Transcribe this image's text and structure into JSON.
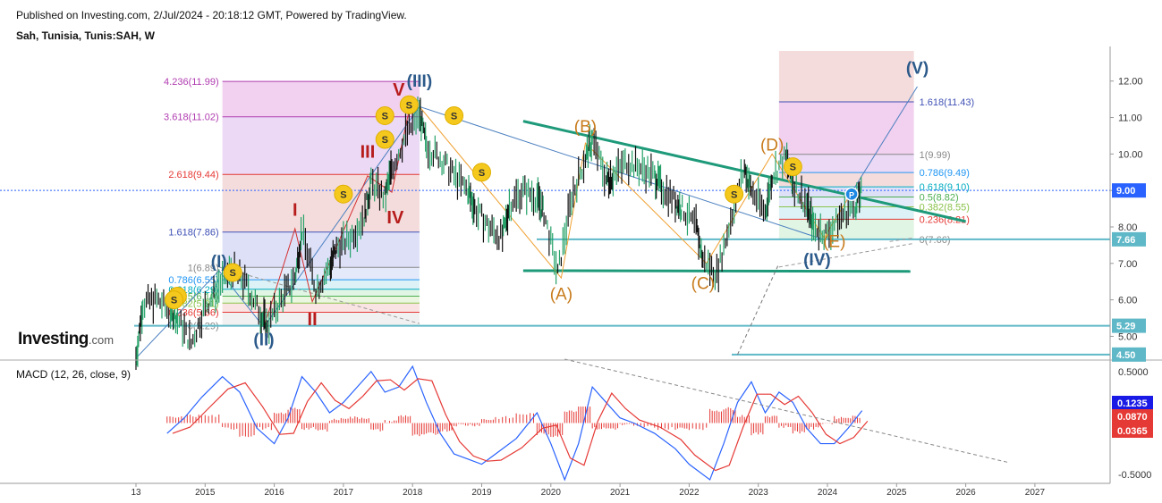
{
  "header": {
    "published": "Published on Investing.com, 2/Jul/2024 - 20:18:12 GMT, Powered by TradingView.",
    "symbol": "Sah, Tunisia, Tunis:SAH, W"
  },
  "logo": {
    "main": "Investing",
    "suffix": ".com"
  },
  "chart_data": [
    {
      "type": "line",
      "subtype": "weekly price chart with Elliott wave annotations",
      "x_axis": {
        "ticks": [
          "13",
          "2015",
          "2016",
          "2017",
          "2018",
          "2019",
          "2020",
          "2021",
          "2022",
          "2023",
          "2024",
          "2025",
          "2026",
          "2027"
        ],
        "tick_years": [
          2014.0,
          2015.0,
          2016.0,
          2017.0,
          2018.0,
          2019.0,
          2020.0,
          2021.0,
          2022.0,
          2023.0,
          2024.0,
          2025.0,
          2026.0,
          2027.0
        ]
      },
      "y_axis": {
        "ticks": [
          5.0,
          6.0,
          7.0,
          8.0,
          9.0,
          10.0,
          11.0,
          12.0
        ],
        "tick_labels": [
          "5.00",
          "6.00",
          "7.00",
          "8.00",
          "9.00",
          "10.00",
          "11.00",
          "12.00"
        ],
        "range": [
          4.3,
          12.9
        ],
        "badges": [
          {
            "label": "9.00",
            "value": 9.0,
            "color": "#2962ff"
          },
          {
            "label": "7.66",
            "value": 7.66,
            "color": "#5fb8c8"
          },
          {
            "label": "5.29",
            "value": 5.29,
            "color": "#5fb8c8"
          },
          {
            "label": "4.50",
            "value": 4.5,
            "color": "#5fb8c8"
          }
        ]
      },
      "price_series": [
        [
          2014.0,
          4.4
        ],
        [
          2014.1,
          5.9
        ],
        [
          2014.3,
          6.0
        ],
        [
          2014.5,
          5.7
        ],
        [
          2014.6,
          5.5
        ],
        [
          2014.8,
          4.8
        ],
        [
          2015.0,
          5.8
        ],
        [
          2015.2,
          6.4
        ],
        [
          2015.4,
          6.8
        ],
        [
          2015.6,
          6.4
        ],
        [
          2015.8,
          5.6
        ],
        [
          2015.9,
          5.3
        ],
        [
          2016.1,
          6.0
        ],
        [
          2016.3,
          6.6
        ],
        [
          2016.4,
          7.9
        ],
        [
          2016.6,
          6.3
        ],
        [
          2016.8,
          6.9
        ],
        [
          2016.9,
          7.4
        ],
        [
          2017.1,
          7.7
        ],
        [
          2017.3,
          8.3
        ],
        [
          2017.4,
          9.2
        ],
        [
          2017.6,
          8.8
        ],
        [
          2017.7,
          9.6
        ],
        [
          2017.9,
          10.5
        ],
        [
          2018.1,
          11.1
        ],
        [
          2018.2,
          10.2
        ],
        [
          2018.4,
          9.9
        ],
        [
          2018.6,
          9.4
        ],
        [
          2018.8,
          9.0
        ],
        [
          2018.9,
          8.5
        ],
        [
          2019.1,
          8.0
        ],
        [
          2019.3,
          7.7
        ],
        [
          2019.4,
          8.6
        ],
        [
          2019.6,
          9.0
        ],
        [
          2019.8,
          8.8
        ],
        [
          2019.9,
          8.4
        ],
        [
          2020.1,
          6.7
        ],
        [
          2020.3,
          8.8
        ],
        [
          2020.5,
          9.9
        ],
        [
          2020.6,
          10.4
        ],
        [
          2020.8,
          9.3
        ],
        [
          2020.9,
          9.4
        ],
        [
          2021.1,
          9.8
        ],
        [
          2021.3,
          9.6
        ],
        [
          2021.5,
          9.4
        ],
        [
          2021.6,
          9.1
        ],
        [
          2021.8,
          8.7
        ],
        [
          2021.9,
          8.5
        ],
        [
          2022.1,
          8.0
        ],
        [
          2022.2,
          7.1
        ],
        [
          2022.4,
          6.7
        ],
        [
          2022.6,
          8.2
        ],
        [
          2022.8,
          9.6
        ],
        [
          2022.9,
          9.0
        ],
        [
          2023.1,
          8.4
        ],
        [
          2023.2,
          9.4
        ],
        [
          2023.4,
          9.9
        ],
        [
          2023.5,
          9.2
        ],
        [
          2023.7,
          8.6
        ],
        [
          2023.8,
          8.0
        ],
        [
          2024.0,
          7.8
        ],
        [
          2024.2,
          8.3
        ],
        [
          2024.4,
          8.6
        ],
        [
          2024.5,
          9.0
        ]
      ],
      "fibonacci_left": {
        "year_range": [
          2015.25,
          2018.1
        ],
        "levels": [
          {
            "label": "4.236(11.99)",
            "value": 11.99,
            "color": "#b03cb0"
          },
          {
            "label": "3.618(11.02)",
            "value": 11.02,
            "color": "#b03cb0"
          },
          {
            "label": "2.618(9.44)",
            "value": 9.44,
            "color": "#e53935"
          },
          {
            "label": "1.618(7.86)",
            "value": 7.86,
            "color": "#3f51b5"
          },
          {
            "label": "1(6.89)",
            "value": 6.89,
            "color": "#888888"
          },
          {
            "label": "0.786(6.55)",
            "value": 6.55,
            "color": "#2196f3"
          },
          {
            "label": "0.618(6.29)",
            "value": 6.29,
            "color": "#00acc1"
          },
          {
            "label": "0.5(6.10)",
            "value": 6.1,
            "color": "#4caf50"
          },
          {
            "label": "0.382(5.91)",
            "value": 5.91,
            "color": "#8bc34a"
          },
          {
            "label": "0.236(5.66)",
            "value": 5.66,
            "color": "#e53935"
          },
          {
            "label": "0(5.29)",
            "value": 5.29,
            "color": "#888888"
          }
        ]
      },
      "fibonacci_right": {
        "year_range": [
          2023.3,
          2025.25
        ],
        "levels": [
          {
            "label": "1.618(11.43)",
            "value": 11.43,
            "color": "#3f51b5"
          },
          {
            "label": "1(9.99)",
            "value": 9.99,
            "color": "#888888"
          },
          {
            "label": "0.786(9.49)",
            "value": 9.49,
            "color": "#2196f3"
          },
          {
            "label": "0.618(9.10)",
            "value": 9.1,
            "color": "#00acc1"
          },
          {
            "label": "0.5(8.82)",
            "value": 8.82,
            "color": "#4caf50"
          },
          {
            "label": "0.382(8.55)",
            "value": 8.55,
            "color": "#8bc34a"
          },
          {
            "label": "0.236(8.21)",
            "value": 8.21,
            "color": "#e53935"
          },
          {
            "label": "0(7.66)",
            "value": 7.66,
            "color": "#888888"
          }
        ]
      },
      "wave_labels": [
        {
          "text": "(I)",
          "year": 2015.2,
          "value": 6.9,
          "color": "#2c5a8a"
        },
        {
          "text": "(II)",
          "year": 2015.85,
          "value": 4.75,
          "color": "#2c5a8a"
        },
        {
          "text": "(III)",
          "year": 2018.1,
          "value": 11.85,
          "color": "#2c5a8a"
        },
        {
          "text": "(IV)",
          "year": 2023.85,
          "value": 6.95,
          "color": "#2c5a8a"
        },
        {
          "text": "(V)",
          "year": 2025.3,
          "value": 12.2,
          "color": "#2c5a8a"
        },
        {
          "text": "I",
          "year": 2016.3,
          "value": 8.3,
          "color": "#b71c1c"
        },
        {
          "text": "II",
          "year": 2016.55,
          "value": 5.3,
          "color": "#b71c1c"
        },
        {
          "text": "III",
          "year": 2017.35,
          "value": 9.9,
          "color": "#b71c1c"
        },
        {
          "text": "IV",
          "year": 2017.75,
          "value": 8.1,
          "color": "#b71c1c"
        },
        {
          "text": "V",
          "year": 2017.8,
          "value": 11.6,
          "color": "#b71c1c"
        },
        {
          "text": "(A)",
          "year": 2020.15,
          "value": 6.0,
          "color": "#c77a1a"
        },
        {
          "text": "(B)",
          "year": 2020.5,
          "value": 10.6,
          "color": "#c77a1a"
        },
        {
          "text": "(C)",
          "year": 2022.2,
          "value": 6.3,
          "color": "#c77a1a"
        },
        {
          "text": "(D)",
          "year": 2023.2,
          "value": 10.1,
          "color": "#c77a1a"
        },
        {
          "text": "(E)",
          "year": 2024.1,
          "value": 7.45,
          "color": "#c77a1a"
        }
      ],
      "s_markers": [
        [
          2014.6,
          6.1
        ],
        [
          2014.55,
          6.0
        ],
        [
          2015.4,
          6.75
        ],
        [
          2017.0,
          8.9
        ],
        [
          2017.6,
          10.4
        ],
        [
          2017.6,
          11.05
        ],
        [
          2017.95,
          11.35
        ],
        [
          2018.6,
          11.05
        ],
        [
          2019.0,
          9.5
        ],
        [
          2022.65,
          8.9
        ],
        [
          2023.5,
          9.65
        ]
      ],
      "p_marker": {
        "label": "P",
        "year": 2024.35,
        "value": 8.9
      }
    },
    {
      "type": "line",
      "title": "MACD (12, 26, close, 9)",
      "y_axis": {
        "ticks": [
          0.5,
          -0.5
        ],
        "tick_labels": [
          "0.5000",
          "-0.5000"
        ],
        "range": [
          -0.62,
          0.62
        ]
      },
      "badges": [
        {
          "label": "0.1235",
          "value": 0.1235,
          "color": "#1a1ae6"
        },
        {
          "label": "0.0870",
          "value": 0.087,
          "color": "#e53935"
        },
        {
          "label": "0.0365",
          "value": 0.0365,
          "color": "#e53935"
        }
      ],
      "series": [
        {
          "name": "MACD",
          "color": "#2962ff"
        },
        {
          "name": "Signal",
          "color": "#e53935"
        },
        {
          "name": "Histogram",
          "color": "#e53935"
        }
      ],
      "macd_series": [
        [
          2014.45,
          -0.1
        ],
        [
          2014.7,
          0.05
        ],
        [
          2014.95,
          0.25
        ],
        [
          2015.25,
          0.45
        ],
        [
          2015.5,
          0.3
        ],
        [
          2015.75,
          -0.05
        ],
        [
          2016.0,
          -0.2
        ],
        [
          2016.2,
          0.05
        ],
        [
          2016.4,
          0.45
        ],
        [
          2016.6,
          0.3
        ],
        [
          2016.8,
          0.1
        ],
        [
          2017.0,
          0.2
        ],
        [
          2017.2,
          0.35
        ],
        [
          2017.4,
          0.5
        ],
        [
          2017.6,
          0.3
        ],
        [
          2017.8,
          0.35
        ],
        [
          2018.0,
          0.55
        ],
        [
          2018.2,
          0.2
        ],
        [
          2018.4,
          -0.1
        ],
        [
          2018.6,
          -0.3
        ],
        [
          2018.8,
          -0.35
        ],
        [
          2019.0,
          -0.4
        ],
        [
          2019.2,
          -0.3
        ],
        [
          2019.5,
          -0.15
        ],
        [
          2019.8,
          0.1
        ],
        [
          2020.0,
          -0.2
        ],
        [
          2020.2,
          -0.55
        ],
        [
          2020.4,
          -0.2
        ],
        [
          2020.6,
          0.35
        ],
        [
          2020.8,
          0.2
        ],
        [
          2021.0,
          0.05
        ],
        [
          2021.2,
          0.0
        ],
        [
          2021.5,
          -0.1
        ],
        [
          2021.8,
          -0.25
        ],
        [
          2022.0,
          -0.4
        ],
        [
          2022.3,
          -0.55
        ],
        [
          2022.5,
          -0.2
        ],
        [
          2022.7,
          0.2
        ],
        [
          2022.9,
          0.4
        ],
        [
          2023.1,
          0.1
        ],
        [
          2023.3,
          0.3
        ],
        [
          2023.5,
          0.2
        ],
        [
          2023.7,
          -0.05
        ],
        [
          2023.9,
          -0.2
        ],
        [
          2024.1,
          -0.2
        ],
        [
          2024.3,
          -0.05
        ],
        [
          2024.5,
          0.12
        ]
      ]
    }
  ]
}
